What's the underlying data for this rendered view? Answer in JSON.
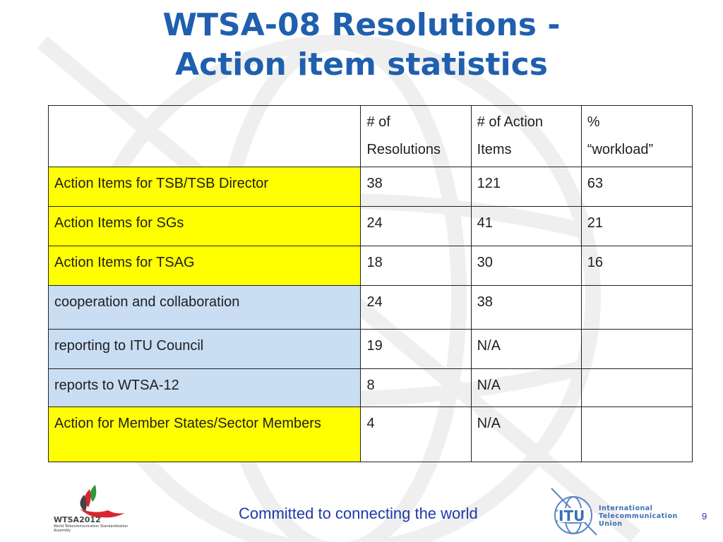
{
  "title": {
    "line1": "WTSA-08 Resolutions -",
    "line2": "Action item statistics"
  },
  "table": {
    "headers": [
      "",
      "# of Resolutions",
      "# of Action Items",
      "% “workload”"
    ],
    "header_lines": [
      [
        ""
      ],
      [
        "# of",
        "Resolutions"
      ],
      [
        "# of Action",
        "Items"
      ],
      [
        "%",
        "“workload”"
      ]
    ],
    "rows": [
      {
        "label": "Action Items for TSB/TSB Director",
        "resolutions": "38",
        "action_items": "121",
        "workload": "63",
        "highlight": "yellow"
      },
      {
        "label": "Action Items for SGs",
        "resolutions": "24",
        "action_items": "41",
        "workload": "21",
        "highlight": "yellow"
      },
      {
        "label": "Action Items for TSAG",
        "resolutions": "18",
        "action_items": "30",
        "workload": "16",
        "highlight": "yellow"
      },
      {
        "label": "cooperation and collaboration",
        "resolutions": "24",
        "action_items": "38",
        "workload": "",
        "highlight": "blue"
      },
      {
        "label": "reporting to ITU Council",
        "resolutions": "19",
        "action_items": "N/A",
        "workload": "",
        "highlight": "blue"
      },
      {
        "label": "reports to WTSA-12",
        "resolutions": "8",
        "action_items": "N/A",
        "workload": "",
        "highlight": "blue"
      },
      {
        "label": "Action for Member States/Sector Members",
        "resolutions": "4",
        "action_items": "N/A",
        "workload": "",
        "highlight": "yellow"
      }
    ]
  },
  "footer": {
    "tagline": "Committed to connecting the world",
    "page_number": "9"
  },
  "logos": {
    "wtsa": {
      "text": "WTSA2012",
      "subtitle": "World Telecommunication Standardization Assembly",
      "icon": "wtsa-2012-bird-logo"
    },
    "itu": {
      "text": "ITU",
      "org_lines": [
        "International",
        "Telecommunication",
        "Union"
      ],
      "icon": "itu-globe-logo"
    }
  },
  "colors": {
    "title": "#1f5fae",
    "yellow_highlight": "#ffff00",
    "blue_highlight": "#c9ddf3",
    "footer_text": "#1f3aa8"
  }
}
